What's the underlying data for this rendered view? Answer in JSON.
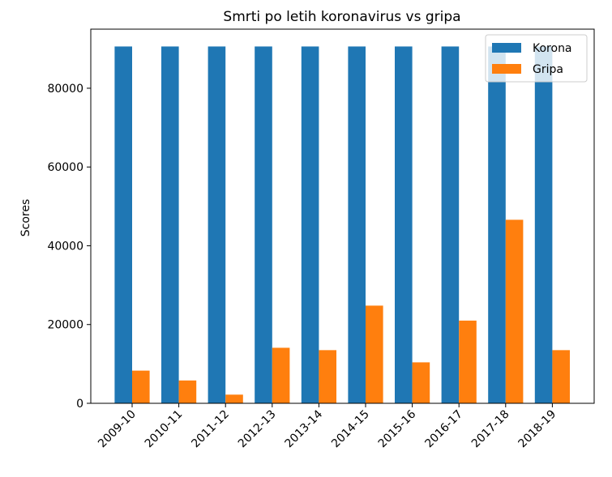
{
  "chart_data": {
    "type": "bar",
    "title": "Smrti po letih koronavirus vs gripa",
    "xlabel": "",
    "ylabel": "Scores",
    "categories": [
      "2009-10",
      "2010-11",
      "2011-12",
      "2012-13",
      "2013-14",
      "2014-15",
      "2015-16",
      "2016-17",
      "2017-18",
      "2018-19"
    ],
    "series": [
      {
        "name": "Korona",
        "color": "#1f77b4",
        "values": [
          90600,
          90600,
          90600,
          90600,
          90600,
          90600,
          90600,
          90600,
          90600,
          90600
        ]
      },
      {
        "name": "Gripa",
        "color": "#ff7f0e",
        "values": [
          8300,
          5800,
          2200,
          14100,
          13500,
          24800,
          10400,
          21000,
          46600,
          13500
        ]
      }
    ],
    "ylim": [
      0,
      95000
    ],
    "yticks": [
      0,
      20000,
      40000,
      60000,
      80000
    ],
    "grid": false,
    "legend": "top-right"
  }
}
